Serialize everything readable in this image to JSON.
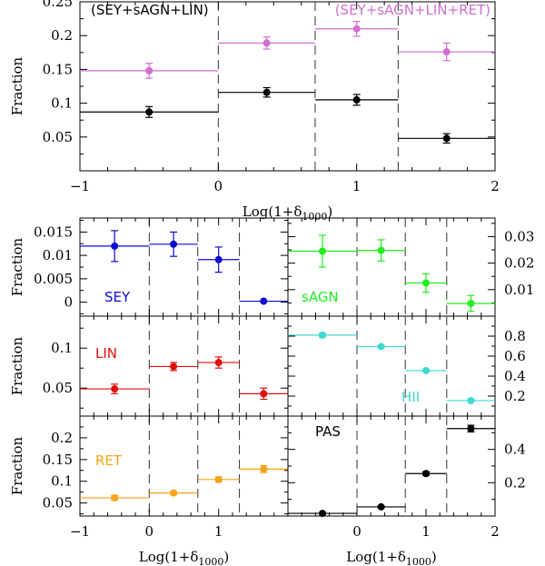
{
  "chart_data": [
    {
      "id": "top",
      "type": "scatter",
      "xlabel": "Log(1+δ",
      "xlabel_sub": "1000",
      "xlabel_close": ")",
      "ylabel": "Fraction",
      "xlim": [
        -1,
        2
      ],
      "ylim": [
        0,
        0.25
      ],
      "xticks": [
        "−1",
        "0",
        "1",
        "2"
      ],
      "xtick_values": [
        -1,
        0,
        1,
        2
      ],
      "yticks": [
        "0.05",
        "0.1",
        "0.15",
        "0.2",
        "0.25"
      ],
      "ytick_values": [
        0.05,
        0.1,
        0.15,
        0.2,
        0.25
      ],
      "dividers": [
        0,
        0.7,
        1.3
      ],
      "series": [
        {
          "name": "(SEY+sAGN+LIN)",
          "color": "#000000",
          "points": [
            {
              "x": -0.5,
              "y": 0.087,
              "err": 0.008,
              "xmin": -1,
              "xmax": 0
            },
            {
              "x": 0.35,
              "y": 0.116,
              "err": 0.007,
              "xmin": 0,
              "xmax": 0.7
            },
            {
              "x": 1.0,
              "y": 0.105,
              "err": 0.008,
              "xmin": 0.7,
              "xmax": 1.3
            },
            {
              "x": 1.65,
              "y": 0.048,
              "err": 0.007,
              "xmin": 1.3,
              "xmax": 2.0
            }
          ]
        },
        {
          "name": "(SEY+sAGN+LIN+RET)",
          "color": "#d06fd0",
          "points": [
            {
              "x": -0.5,
              "y": 0.148,
              "err": 0.011,
              "xmin": -1,
              "xmax": 0
            },
            {
              "x": 0.35,
              "y": 0.189,
              "err": 0.009,
              "xmin": 0,
              "xmax": 0.7
            },
            {
              "x": 1.0,
              "y": 0.21,
              "err": 0.011,
              "xmin": 0.7,
              "xmax": 1.3
            },
            {
              "x": 1.65,
              "y": 0.176,
              "err": 0.013,
              "xmin": 1.3,
              "xmax": 2.0
            }
          ]
        }
      ]
    },
    {
      "id": "sey",
      "type": "scatter",
      "label": "SEY",
      "color": "#0b0bd0",
      "ylabel": "Fraction",
      "xlim": [
        -1,
        2
      ],
      "ylim": [
        -0.003,
        0.018
      ],
      "yticks": [
        "0",
        "0.005",
        "0.01",
        "0.015"
      ],
      "ytick_values": [
        0,
        0.005,
        0.01,
        0.015
      ],
      "dividers": [
        0,
        0.7,
        1.3
      ],
      "points": [
        {
          "x": -0.5,
          "y": 0.012,
          "err": 0.0033,
          "xmin": -1,
          "xmax": 0
        },
        {
          "x": 0.35,
          "y": 0.0124,
          "err": 0.0026,
          "xmin": 0,
          "xmax": 0.7
        },
        {
          "x": 1.0,
          "y": 0.0091,
          "err": 0.0027,
          "xmin": 0.7,
          "xmax": 1.3
        },
        {
          "x": 1.65,
          "y": 0.0002,
          "err": 0,
          "xmin": 1.3,
          "xmax": 2.0
        }
      ]
    },
    {
      "id": "sagn",
      "type": "scatter",
      "label": "sAGN",
      "color": "#22ee22",
      "xlim": [
        -1,
        2
      ],
      "ylim": [
        0,
        0.037
      ],
      "yticks": [
        "0.01",
        "0.02",
        "0.03"
      ],
      "ytick_values": [
        0.01,
        0.02,
        0.03
      ],
      "dividers": [
        0,
        0.7,
        1.3
      ],
      "points": [
        {
          "x": -0.5,
          "y": 0.0245,
          "err": 0.006,
          "xmin": -1,
          "xmax": 0
        },
        {
          "x": 0.35,
          "y": 0.0248,
          "err": 0.004,
          "xmin": 0,
          "xmax": 0.7
        },
        {
          "x": 1.0,
          "y": 0.0125,
          "err": 0.0035,
          "xmin": 0.7,
          "xmax": 1.3
        },
        {
          "x": 1.65,
          "y": 0.0048,
          "err": 0.003,
          "xmin": 1.3,
          "xmax": 2.0
        }
      ]
    },
    {
      "id": "lin",
      "type": "scatter",
      "label": "LIN",
      "color": "#e01010",
      "ylabel": "Fraction",
      "xlim": [
        -1,
        2
      ],
      "ylim": [
        0.015,
        0.14
      ],
      "yticks": [
        "0.05",
        "0.1"
      ],
      "ytick_values": [
        0.05,
        0.1
      ],
      "dividers": [
        0,
        0.7,
        1.3
      ],
      "points": [
        {
          "x": -0.5,
          "y": 0.049,
          "err": 0.006,
          "xmin": -1,
          "xmax": 0
        },
        {
          "x": 0.35,
          "y": 0.077,
          "err": 0.005,
          "xmin": 0,
          "xmax": 0.7
        },
        {
          "x": 1.0,
          "y": 0.082,
          "err": 0.007,
          "xmin": 0.7,
          "xmax": 1.3
        },
        {
          "x": 1.65,
          "y": 0.043,
          "err": 0.007,
          "xmin": 1.3,
          "xmax": 2.0
        }
      ]
    },
    {
      "id": "hii",
      "type": "scatter",
      "label": "HII",
      "color": "#40d8cf",
      "xlim": [
        -1,
        2
      ],
      "ylim": [
        0,
        1.0
      ],
      "yticks": [
        "0.2",
        "0.4",
        "0.6",
        "0.8"
      ],
      "ytick_values": [
        0.2,
        0.4,
        0.6,
        0.8
      ],
      "dividers": [
        0,
        0.7,
        1.3
      ],
      "points": [
        {
          "x": -0.5,
          "y": 0.81,
          "err": 0.02,
          "xmin": -1,
          "xmax": 0
        },
        {
          "x": 0.35,
          "y": 0.695,
          "err": 0.01,
          "xmin": 0,
          "xmax": 0.7
        },
        {
          "x": 1.0,
          "y": 0.455,
          "err": 0.01,
          "xmin": 0.7,
          "xmax": 1.3
        },
        {
          "x": 1.65,
          "y": 0.155,
          "err": 0.01,
          "xmin": 1.3,
          "xmax": 2.0
        }
      ]
    },
    {
      "id": "ret",
      "type": "scatter",
      "label": "RET",
      "color": "#f5a418",
      "ylabel": "Fraction",
      "xlabel": "Log(1+δ",
      "xlabel_sub": "1000",
      "xlabel_close": ")",
      "xlim": [
        -1,
        2
      ],
      "ylim": [
        0.02,
        0.25
      ],
      "xticks": [
        "−1",
        "0",
        "1"
      ],
      "xtick_values": [
        -1,
        0,
        1
      ],
      "yticks": [
        "0.05",
        "0.1",
        "0.15",
        "0.2"
      ],
      "ytick_values": [
        0.05,
        0.1,
        0.15,
        0.2
      ],
      "dividers": [
        0,
        0.7,
        1.3
      ],
      "points": [
        {
          "x": -0.5,
          "y": 0.062,
          "err": 0.005,
          "xmin": -1,
          "xmax": 0
        },
        {
          "x": 0.35,
          "y": 0.073,
          "err": 0.004,
          "xmin": 0,
          "xmax": 0.7
        },
        {
          "x": 1.0,
          "y": 0.104,
          "err": 0.006,
          "xmin": 0.7,
          "xmax": 1.3
        },
        {
          "x": 1.65,
          "y": 0.128,
          "err": 0.008,
          "xmin": 1.3,
          "xmax": 2.0
        }
      ]
    },
    {
      "id": "pas",
      "type": "scatter",
      "label": "PAS",
      "color": "#000000",
      "xlabel": "Log(1+δ",
      "xlabel_sub": "1000",
      "xlabel_close": ")",
      "xlim": [
        -1,
        2
      ],
      "ylim": [
        0,
        0.6
      ],
      "xticks": [
        "0",
        "1",
        "2"
      ],
      "xtick_values": [
        0,
        1,
        2
      ],
      "yticks": [
        "0.2",
        "0.4"
      ],
      "ytick_values": [
        0.2,
        0.4
      ],
      "dividers": [
        0,
        0.7,
        1.3
      ],
      "points": [
        {
          "x": -0.5,
          "y": 0.016,
          "err": 0.004,
          "xmin": -1,
          "xmax": 0
        },
        {
          "x": 0.35,
          "y": 0.055,
          "err": 0.005,
          "xmin": 0,
          "xmax": 0.7
        },
        {
          "x": 1.0,
          "y": 0.255,
          "err": 0.01,
          "xmin": 0.7,
          "xmax": 1.3
        },
        {
          "x": 1.65,
          "y": 0.525,
          "err": 0.02,
          "xmin": 1.3,
          "xmax": 2.0
        }
      ]
    }
  ]
}
